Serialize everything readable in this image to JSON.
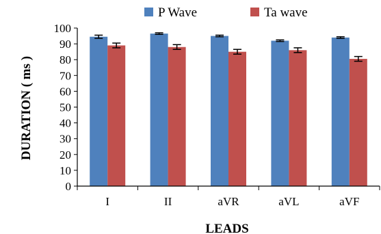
{
  "chart_data": {
    "type": "bar",
    "title": "",
    "xlabel": "LEADS",
    "ylabel": "DURATION ( ms )",
    "ylim": [
      0,
      100
    ],
    "yticks": [
      0,
      10,
      20,
      30,
      40,
      50,
      60,
      70,
      80,
      90,
      100
    ],
    "categories": [
      "I",
      "II",
      "aVR",
      "aVL",
      "aVF"
    ],
    "legend_position": "top",
    "grid": false,
    "error_bars": true,
    "series": [
      {
        "name": "P Wave",
        "color": "#4f81bd",
        "values": [
          94.5,
          96.5,
          95,
          92,
          94
        ],
        "errors": [
          1,
          0.5,
          0.5,
          0.5,
          0.5
        ]
      },
      {
        "name": "Ta wave",
        "color": "#c0504d",
        "values": [
          89,
          88,
          85,
          86,
          80.5
        ],
        "errors": [
          1.5,
          1.5,
          1.5,
          1.5,
          1.5
        ]
      }
    ]
  }
}
